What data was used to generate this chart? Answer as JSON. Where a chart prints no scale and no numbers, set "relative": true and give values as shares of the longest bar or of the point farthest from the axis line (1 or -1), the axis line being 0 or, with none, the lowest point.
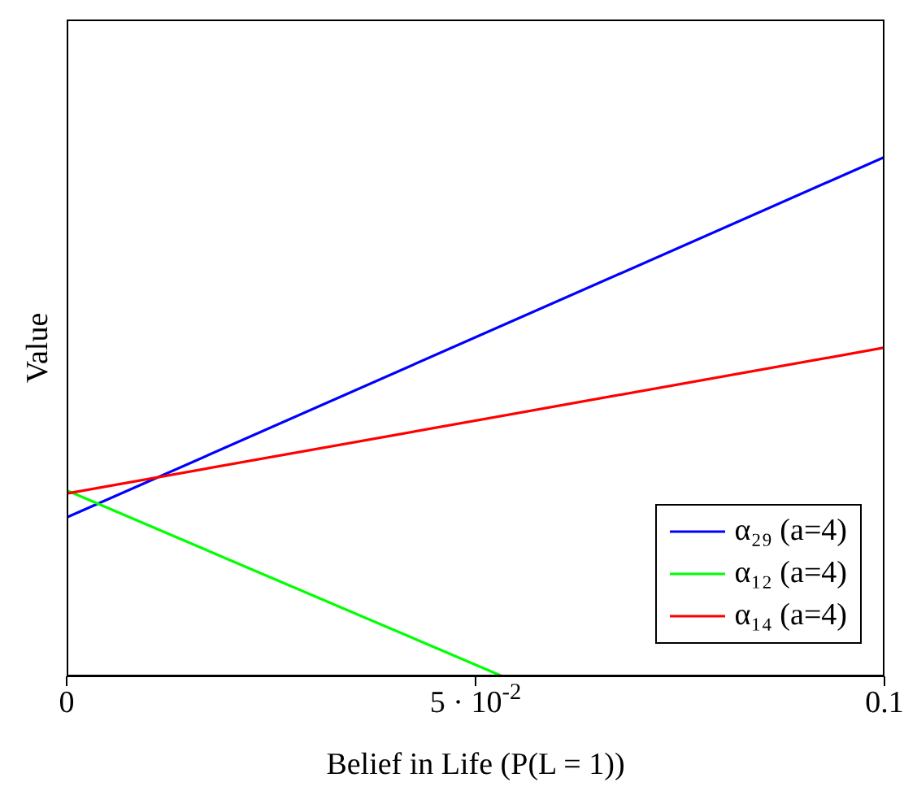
{
  "chart_data": {
    "type": "line",
    "relative": true,
    "xlabel": "Belief in Life (P(L = 1))",
    "ylabel": "Value",
    "xlim": [
      0,
      0.1
    ],
    "xticks": [
      0,
      {
        "value": 0.05,
        "label": "5 · 10$^{-2}$"
      },
      0.1
    ],
    "legend": "bottom right",
    "marker": "none",
    "line_style": "solid",
    "grid": false,
    "series": [
      {
        "name": "α₂₉ (a=4)",
        "color": "#0000ff",
        "x": [
          0,
          0.1
        ],
        "values": [
          0.306,
          1
        ]
      },
      {
        "name": "α₁₂ (a=4)",
        "color": "#00ff00",
        "x": [
          0,
          0.0533
        ],
        "values": [
          0.358,
          0
        ]
      },
      {
        "name": "α₁₄ (a=4)",
        "color": "#ff0000",
        "x": [
          0,
          0.1
        ],
        "values": [
          0.352,
          0.633
        ]
      }
    ]
  }
}
